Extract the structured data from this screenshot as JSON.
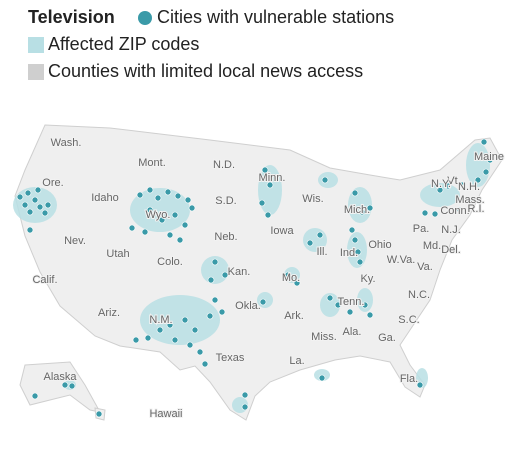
{
  "legend": {
    "title": "Television",
    "items": [
      "Cities with vulnerable stations",
      "Affected ZIP codes",
      "Counties with limited local news access"
    ]
  },
  "states": [
    "Wash.",
    "Ore.",
    "Idaho",
    "Mont.",
    "N.D.",
    "Minn.",
    "Wyo.",
    "S.D.",
    "Wis.",
    "Mich.",
    "Maine",
    "Vt.",
    "N.H.",
    "N.Y.",
    "Mass.",
    "Conn.",
    "R.I.",
    "Pa.",
    "N.J.",
    "Nev.",
    "Utah",
    "Neb.",
    "Iowa",
    "Ill.",
    "Ind.",
    "Ohio",
    "Md.",
    "Del.",
    "Calif.",
    "Colo.",
    "Kan.",
    "Mo.",
    "Ky.",
    "W.Va.",
    "Va.",
    "Okla.",
    "Tenn.",
    "N.C.",
    "Ariz.",
    "N.M.",
    "Ark.",
    "S.C.",
    "Miss.",
    "Ala.",
    "Ga.",
    "Texas",
    "La.",
    "Fla.",
    "Alaska",
    "Hawaii"
  ]
}
